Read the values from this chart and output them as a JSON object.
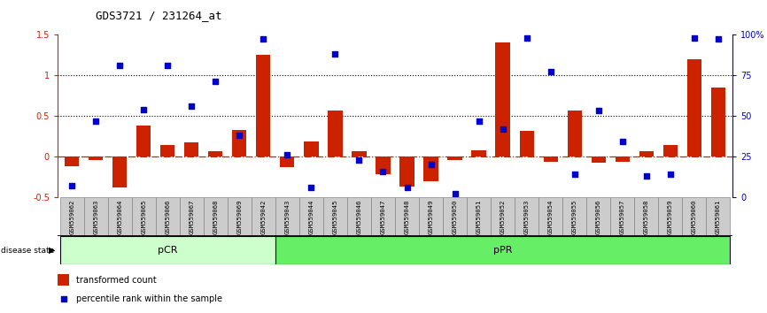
{
  "title": "GDS3721 / 231264_at",
  "samples": [
    "GSM559062",
    "GSM559063",
    "GSM559064",
    "GSM559065",
    "GSM559066",
    "GSM559067",
    "GSM559068",
    "GSM559069",
    "GSM559042",
    "GSM559043",
    "GSM559044",
    "GSM559045",
    "GSM559046",
    "GSM559047",
    "GSM559048",
    "GSM559049",
    "GSM559050",
    "GSM559051",
    "GSM559052",
    "GSM559053",
    "GSM559054",
    "GSM559055",
    "GSM559056",
    "GSM559057",
    "GSM559058",
    "GSM559059",
    "GSM559060",
    "GSM559061"
  ],
  "bar_values": [
    -0.12,
    -0.04,
    -0.38,
    0.38,
    0.14,
    0.17,
    0.07,
    0.33,
    1.25,
    -0.13,
    0.18,
    0.56,
    0.06,
    -0.22,
    -0.37,
    -0.3,
    -0.04,
    0.08,
    1.4,
    0.31,
    -0.07,
    0.57,
    -0.08,
    -0.07,
    0.06,
    0.14,
    1.2,
    0.85
  ],
  "dot_values_pct": [
    7,
    47,
    81,
    54,
    81,
    56,
    71,
    38,
    97,
    26,
    6,
    88,
    23,
    16,
    6,
    20,
    2,
    47,
    42,
    98,
    77,
    14,
    53,
    34,
    13,
    14,
    98,
    97
  ],
  "pCR_count": 9,
  "pPR_count": 19,
  "ylim_left": [
    -0.5,
    1.5
  ],
  "ylim_right": [
    0,
    100
  ],
  "hline_values": [
    0.5,
    1.0
  ],
  "bar_color": "#cc2200",
  "dot_color": "#0000cc",
  "zero_line_color": "#cc2200",
  "pCR_color": "#ccffcc",
  "pPR_color": "#66ee66",
  "tick_bg_color": "#cccccc",
  "legend_bar_label": "transformed count",
  "legend_dot_label": "percentile rank within the sample"
}
